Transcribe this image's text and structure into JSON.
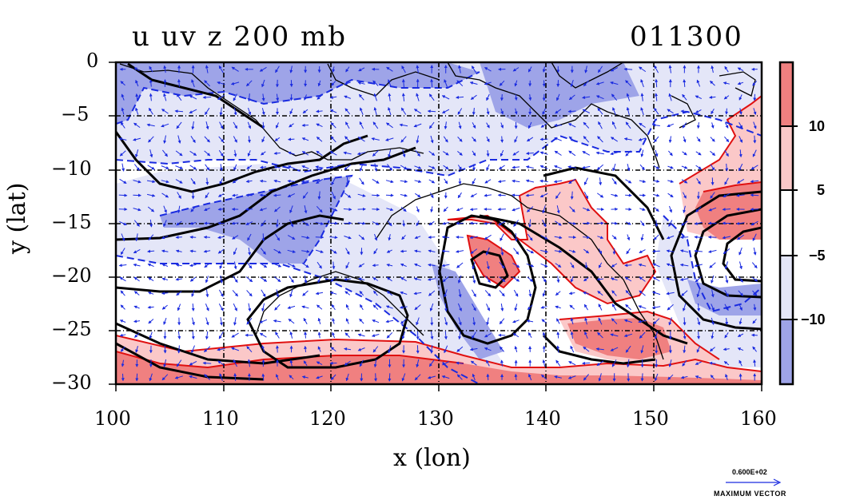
{
  "title": {
    "left": "u uv z 200 mb",
    "right": "011300"
  },
  "axes": {
    "xlabel": "x (lon)",
    "ylabel": "y (lat)",
    "x_ticks": [
      "100",
      "110",
      "120",
      "130",
      "140",
      "150",
      "160"
    ],
    "y_ticks": [
      "0",
      "−5",
      "−10",
      "−15",
      "−20",
      "−25",
      "−30"
    ]
  },
  "colorbar": {
    "labels": [
      "10",
      "5",
      "−5",
      "−10"
    ],
    "colors": [
      "#f08080",
      "#fbc8c8",
      "#ffffff",
      "#e4e6f8",
      "#9ea4e8"
    ]
  },
  "max_vector": {
    "value": "0.600E+02",
    "label": "MAXIMUM VECTOR"
  },
  "chart_data": {
    "type": "heatmap",
    "title": "u uv z 200 mb",
    "xlabel": "x (lon)",
    "ylabel": "y (lat)",
    "xlim": [
      100,
      160
    ],
    "ylim": [
      -30,
      0
    ],
    "grid": true,
    "colorbar_levels": [
      -10,
      -5,
      5,
      10
    ],
    "regions": [
      {
        "name": "negative u, strong",
        "level": "< -10",
        "color": "#9ea4e8",
        "polygon": [
          [
            100,
            0
          ],
          [
            118,
            0
          ],
          [
            126,
            -2
          ],
          [
            122,
            -4
          ],
          [
            110,
            -2
          ],
          [
            104,
            -3
          ],
          [
            101,
            -5
          ]
        ]
      },
      {
        "name": "negative u, strong",
        "level": "< -10",
        "color": "#9ea4e8",
        "polygon": [
          [
            104,
            -14.5
          ],
          [
            110,
            -13
          ],
          [
            116,
            -12
          ],
          [
            124,
            -10
          ],
          [
            120,
            -16
          ],
          [
            112,
            -18
          ],
          [
            106,
            -16
          ]
        ]
      },
      {
        "name": "positive u, strong",
        "level": "> 10",
        "color": "#f08080",
        "polygon": [
          [
            100,
            -27.5
          ],
          [
            115,
            -28
          ],
          [
            130,
            -28
          ],
          [
            145,
            -29
          ],
          [
            160,
            -29.5
          ],
          [
            160,
            -30
          ],
          [
            100,
            -30
          ]
        ]
      },
      {
        "name": "positive u, strong",
        "level": "> 10",
        "color": "#f08080",
        "polygon": [
          [
            153,
            -16
          ],
          [
            160,
            -14
          ],
          [
            160,
            -18
          ],
          [
            155,
            -17
          ]
        ]
      }
    ],
    "height_contour_lines": 14
  }
}
